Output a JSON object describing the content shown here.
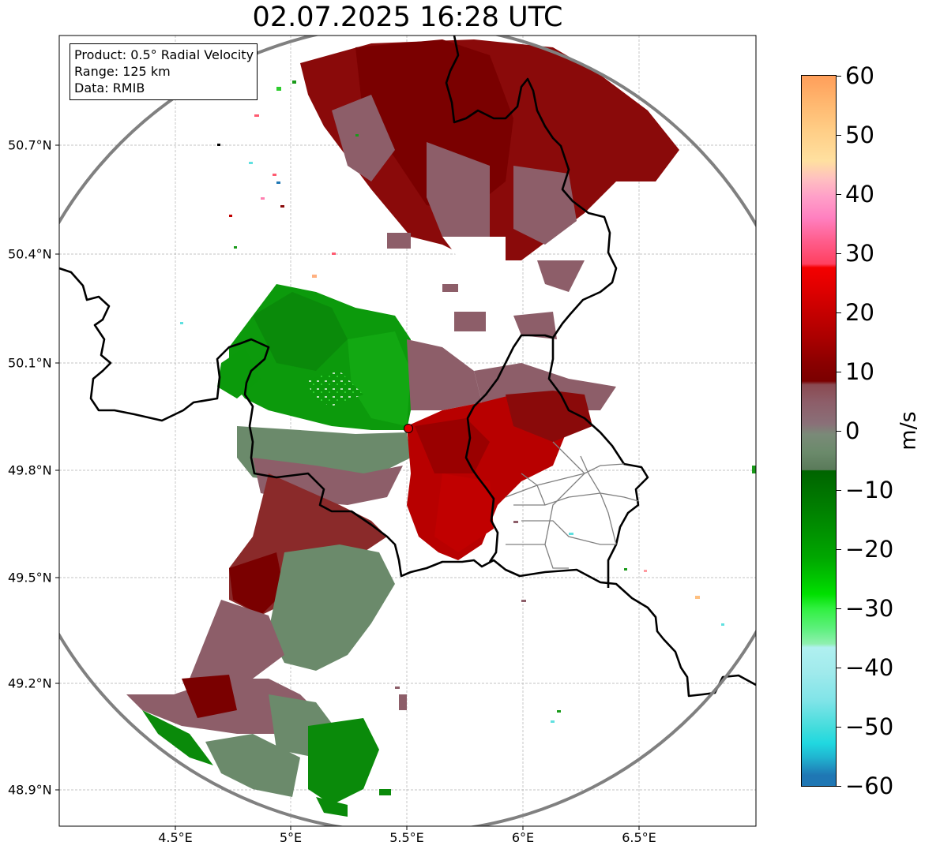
{
  "title": "02.07.2025 16:28 UTC",
  "info": {
    "product": "Product: 0.5° Radial Velocity",
    "range": "Range: 125 km",
    "source": "Data: RMIB"
  },
  "axes": {
    "lat_labels": [
      "50.7°N",
      "50.4°N",
      "50.1°N",
      "49.8°N",
      "49.5°N",
      "49.2°N",
      "48.9°N"
    ],
    "lon_labels": [
      "4.5°E",
      "5°E",
      "5.5°E",
      "6°E",
      "6.5°E"
    ]
  },
  "colorbar": {
    "unit": "m/s",
    "ticks": [
      "60",
      "50",
      "40",
      "30",
      "20",
      "10",
      "0",
      "−10",
      "−20",
      "−30",
      "−40",
      "−50",
      "−60"
    ],
    "min": -60,
    "max": 60
  },
  "colors": {
    "border": "#000000",
    "range_ring": "#808080",
    "radar_site": "#e00000",
    "grid": "#b0b0b0"
  }
}
